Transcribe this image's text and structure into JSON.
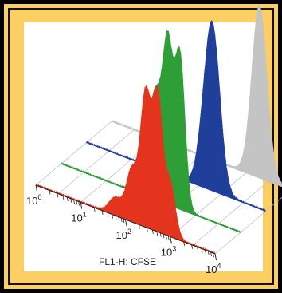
{
  "chart_data": {
    "type": "area",
    "title": "",
    "xlabel": "FL1-H: CFSE",
    "ylabel": "",
    "xscale": "log",
    "xlim": [
      1,
      10000
    ],
    "x_tick_labels": [
      {
        "base": "10",
        "exp": "0"
      },
      {
        "base": "10",
        "exp": "1"
      },
      {
        "base": "10",
        "exp": "2"
      },
      {
        "base": "10",
        "exp": "3"
      },
      {
        "base": "10",
        "exp": "4"
      }
    ],
    "grid": true,
    "legend": "none",
    "series": [
      {
        "color": "#c4c4c4",
        "peaks": [
          {
            "x": 2000,
            "height": 1.0,
            "width": 0.06
          }
        ]
      },
      {
        "color": "#1f3f9a",
        "peaks": [
          {
            "x": 650,
            "height": 0.95,
            "width": 0.06
          },
          {
            "x": 380,
            "height": 0.12,
            "width": 0.05
          }
        ]
      },
      {
        "color": "#2e9e36",
        "peaks": [
          {
            "x": 70,
            "height": 0.3,
            "width": 0.05
          },
          {
            "x": 130,
            "height": 0.55,
            "width": 0.045
          },
          {
            "x": 240,
            "height": 0.9,
            "width": 0.04
          },
          {
            "x": 450,
            "height": 0.88,
            "width": 0.04
          }
        ]
      },
      {
        "color": "#e4341e",
        "peaks": [
          {
            "x": 60,
            "height": 0.1,
            "width": 0.05
          },
          {
            "x": 140,
            "height": 0.3,
            "width": 0.045
          },
          {
            "x": 280,
            "height": 0.75,
            "width": 0.04
          },
          {
            "x": 520,
            "height": 0.78,
            "width": 0.04
          },
          {
            "x": 1000,
            "height": 0.3,
            "width": 0.04
          }
        ]
      }
    ]
  }
}
